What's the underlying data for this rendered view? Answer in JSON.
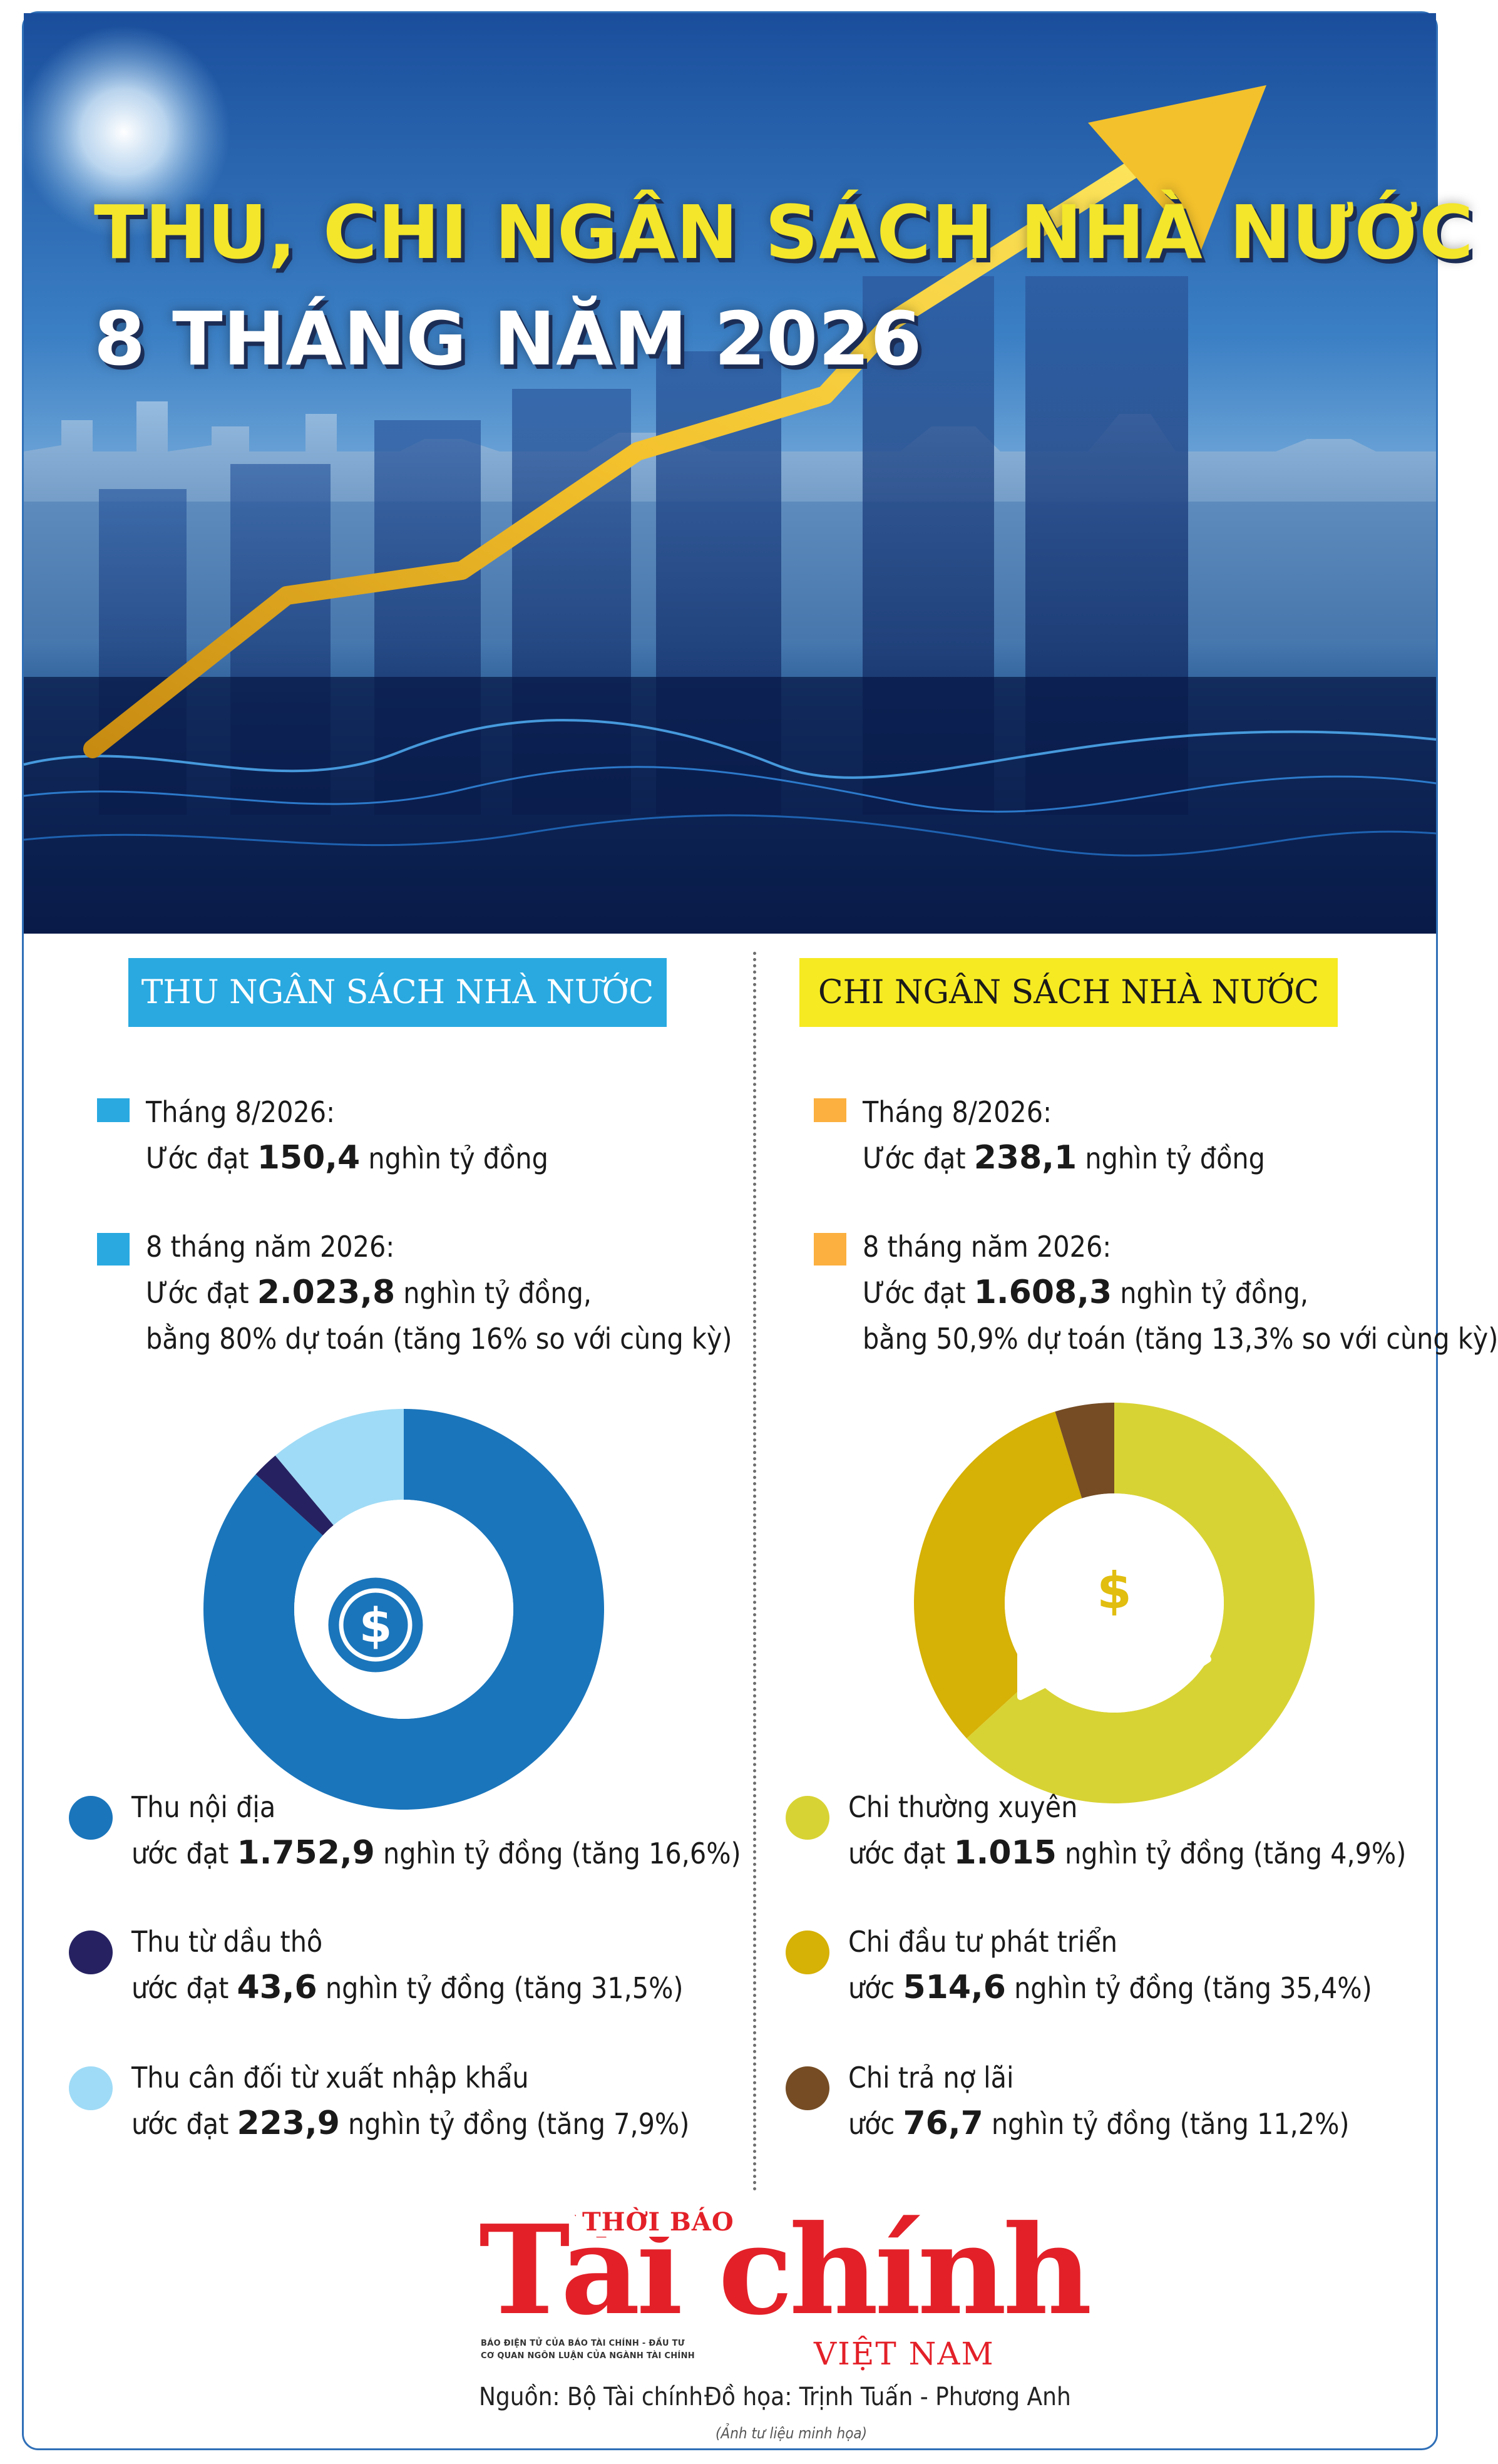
{
  "hero": {
    "title": "THU, CHI NGÂN SÁCH NHÀ NƯỚC",
    "subtitle": "8 THÁNG NĂM 2026"
  },
  "revenue": {
    "heading": "THU NGÂN SÁCH NHÀ NƯỚC",
    "month_label": "Tháng 8/2026:",
    "month_prefix": "Ước đạt ",
    "month_value": "150,4",
    "month_suffix": " nghìn tỷ đồng",
    "ytd_label": "8 tháng năm 2026:",
    "ytd_prefix": "Ước đạt ",
    "ytd_value": "2.023,8",
    "ytd_suffix": " nghìn tỷ đồng,",
    "ytd_note": "bằng 80% dự toán (tăng 16% so với cùng kỳ)",
    "icon": "coins-stack-icon",
    "legend": [
      {
        "name": "Thu nội địa",
        "prefix": "ước đạt ",
        "value": "1.752,9",
        "suffix": " nghìn tỷ đồng (tăng 16,6%)",
        "color": "#1a75bb"
      },
      {
        "name": "Thu từ dầu thô",
        "prefix": "ước đạt ",
        "value": "43,6",
        "suffix": " nghìn tỷ đồng (tăng 31,5%)",
        "color": "#262262"
      },
      {
        "name": "Thu cân đối từ xuất nhập khẩu",
        "prefix": "ước đạt ",
        "value": "223,9",
        "suffix": " nghìn tỷ đồng (tăng 7,9%)",
        "color": "#9fdbf6"
      }
    ]
  },
  "expenditure": {
    "heading": "CHI NGÂN SÁCH NHÀ NƯỚC",
    "month_label": "Tháng 8/2026:",
    "month_prefix": "Ước đạt ",
    "month_value": "238,1",
    "month_suffix": " nghìn tỷ đồng",
    "ytd_label": "8 tháng năm 2026:",
    "ytd_prefix": "Ước đạt ",
    "ytd_value": "1.608,3",
    "ytd_suffix": " nghìn tỷ đồng,",
    "ytd_note": "bằng 50,9% dự toán (tăng 13,3% so với cùng kỳ)",
    "icon": "money-bag-hand-icon",
    "legend": [
      {
        "name": "Chi thường xuyên",
        "prefix": "ước đạt ",
        "value": "1.015",
        "suffix": " nghìn tỷ đồng (tăng 4,9%)",
        "color": "#d8d334"
      },
      {
        "name": "Chi đầu tư phát triển",
        "prefix": "ước ",
        "value": "514,6",
        "suffix": " nghìn tỷ đồng (tăng 35,4%)",
        "color": "#d6b106"
      },
      {
        "name": "Chi trả nợ lãi",
        "prefix": "ước ",
        "value": "76,7",
        "suffix": " nghìn tỷ đồng (tăng 11,2%)",
        "color": "#754c24"
      }
    ]
  },
  "chart_data": [
    {
      "type": "pie",
      "categories": [
        "Thu nội địa",
        "Thu từ dầu thô",
        "Thu cân đối từ xuất nhập khẩu"
      ],
      "values": [
        1752.9,
        43.6,
        223.9
      ],
      "colors": [
        "#1a75bb",
        "#262262",
        "#9fdbf6"
      ]
    },
    {
      "type": "pie",
      "categories": [
        "Chi thường xuyên",
        "Chi đầu tư phát triển",
        "Chi trả nợ lãi"
      ],
      "values": [
        1015,
        514.6,
        76.7
      ],
      "colors": [
        "#d8d334",
        "#d6b106",
        "#754c24"
      ]
    }
  ],
  "footer": {
    "logo_top": "THỜI BÁO",
    "logo_word": "Tài chính",
    "logo_sub1": "BÁO ĐIỆN TỬ CỦA BÁO TÀI CHÍNH - ĐẦU TƯ",
    "logo_sub2": "CƠ QUAN NGÔN LUẬN CỦA NGÀNH TÀI CHÍNH",
    "logo_country": "VIỆT NAM",
    "source": "Nguồn: Bộ Tài chính",
    "graphics": "Đồ họa: Trịnh Tuấn - Phương Anh",
    "photo_note": "(Ảnh tư liệu minh họa)"
  }
}
